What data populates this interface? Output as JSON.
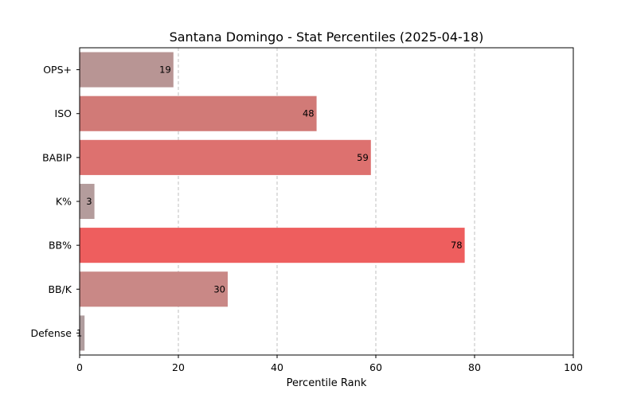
{
  "chart_data": {
    "type": "bar",
    "orientation": "horizontal",
    "title": "Santana Domingo - Stat Percentiles (2025-04-18)",
    "xlabel": "Percentile Rank",
    "ylabel": "",
    "xlim": [
      0,
      100
    ],
    "xticks": [
      0,
      20,
      40,
      60,
      80,
      100
    ],
    "grid": "x-dashed",
    "categories": [
      "OPS+",
      "ISO",
      "BABIP",
      "K%",
      "BB%",
      "BB/K",
      "Defense"
    ],
    "values": [
      19,
      48,
      59,
      3,
      78,
      30,
      1
    ],
    "colors": [
      "#b89594",
      "#d17a77",
      "#dd716f",
      "#b49c9c",
      "#ee5e5e",
      "#c98886",
      "#b09d9e"
    ]
  }
}
